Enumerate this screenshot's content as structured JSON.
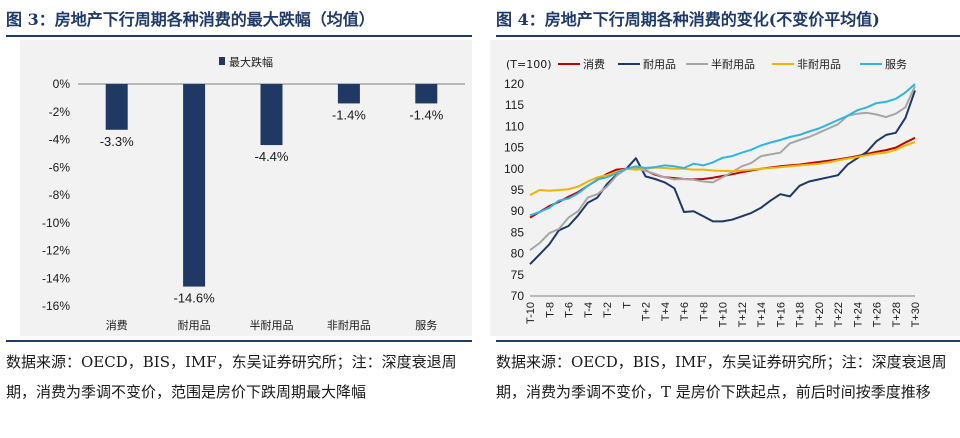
{
  "left": {
    "title": "图 3：房地产下行周期各种消费的最大跌幅（均值）",
    "note": "数据来源：OECD，BIS，IMF，东吴证券研究所；注：深度衰退周期，消费为季调不变价，范围是房价下跌周期最大降幅",
    "bar_color": "#1f3864"
  },
  "right": {
    "title": "图 4：房地产下行周期各种消费的变化(不变价平均值)",
    "note": "数据来源：OECD，BIS，IMF，东吴证券研究所；注：深度衰退周期，消费为季调不变价，T 是房价下跌起点，前后时间按季度推移",
    "unit_label": "(T=100)"
  },
  "chart_data": [
    {
      "type": "bar",
      "legend": [
        "最大跌幅"
      ],
      "categories": [
        "消费",
        "耐用品",
        "半耐用品",
        "非耐用品",
        "服务"
      ],
      "values": [
        -3.3,
        -14.6,
        -4.4,
        -1.4,
        -1.4
      ],
      "value_labels": [
        "-3.3%",
        "-14.6%",
        "-4.4%",
        "-1.4%",
        "-1.4%"
      ],
      "ylim": [
        -16,
        0
      ],
      "yticks": [
        "0%",
        "-2%",
        "-4%",
        "-6%",
        "-8%",
        "-10%",
        "-12%",
        "-14%",
        "-16%"
      ],
      "grid": false
    },
    {
      "type": "line",
      "ylim": [
        70,
        120
      ],
      "yticks": [
        "70",
        "75",
        "80",
        "85",
        "90",
        "95",
        "100",
        "105",
        "110",
        "115",
        "120"
      ],
      "x_labels": [
        "T-10",
        "T-8",
        "T-6",
        "T-4",
        "T-2",
        "T",
        "T+2",
        "T+4",
        "T+6",
        "T+8",
        "T+10",
        "T+12",
        "T+14",
        "T+16",
        "T+18",
        "T+20",
        "T+22",
        "T+24",
        "T+26",
        "T+28",
        "T+30"
      ],
      "legend_position": "top",
      "series": [
        {
          "name": "消费",
          "color": "#c00000",
          "values": [
            88.5,
            89.8,
            91.2,
            92.2,
            93.4,
            94.5,
            96.0,
            97.4,
            98.8,
            99.8,
            100.0,
            100.3,
            99.6,
            98.6,
            98.0,
            97.8,
            97.6,
            97.5,
            97.6,
            97.9,
            98.3,
            98.7,
            99.2,
            99.6,
            100.0,
            100.3,
            100.6,
            100.8,
            101.0,
            101.3,
            101.6,
            101.9,
            102.2,
            102.6,
            103.0,
            103.5,
            104.0,
            104.4,
            105.0,
            106.2,
            107.3
          ]
        },
        {
          "name": "耐用品",
          "color": "#1f3864",
          "values": [
            77.5,
            79.8,
            82.2,
            85.5,
            86.5,
            89.0,
            92.0,
            93.2,
            96.4,
            98.6,
            100.0,
            102.5,
            98.2,
            97.6,
            96.8,
            95.4,
            89.8,
            90.0,
            88.8,
            87.6,
            87.6,
            88.0,
            88.8,
            89.6,
            90.8,
            92.5,
            94.0,
            93.5,
            96.0,
            97.0,
            97.5,
            98.0,
            98.5,
            101.0,
            102.5,
            104.0,
            106.5,
            108.0,
            108.5,
            112.0,
            118.5
          ]
        },
        {
          "name": "半耐用品",
          "color": "#a6a6a6",
          "values": [
            80.8,
            82.5,
            84.8,
            85.8,
            88.5,
            90.0,
            93.2,
            94.0,
            95.8,
            98.4,
            100.0,
            100.2,
            99.5,
            98.8,
            98.0,
            97.5,
            97.6,
            97.4,
            97.0,
            96.8,
            98.0,
            99.2,
            100.6,
            101.4,
            103.0,
            103.4,
            103.8,
            106.0,
            106.8,
            107.5,
            108.5,
            109.5,
            110.5,
            112.5,
            113.0,
            113.2,
            112.8,
            112.2,
            113.0,
            114.5,
            119.5
          ]
        },
        {
          "name": "非耐用品",
          "color": "#f0b400",
          "values": [
            93.8,
            95.0,
            94.8,
            95.0,
            95.2,
            95.8,
            97.0,
            98.0,
            98.5,
            99.3,
            100.0,
            99.8,
            100.0,
            100.3,
            100.2,
            100.0,
            100.0,
            99.8,
            99.8,
            99.6,
            99.5,
            99.4,
            99.6,
            99.8,
            100.0,
            100.2,
            100.4,
            100.6,
            100.8,
            101.0,
            101.2,
            101.5,
            102.0,
            102.4,
            102.8,
            103.2,
            103.6,
            103.8,
            104.5,
            105.5,
            106.3
          ]
        },
        {
          "name": "服务",
          "color": "#30b4e0",
          "values": [
            89.0,
            89.8,
            90.8,
            92.5,
            93.0,
            94.2,
            96.0,
            97.5,
            98.0,
            99.0,
            100.0,
            100.6,
            100.2,
            100.4,
            100.8,
            100.6,
            100.2,
            101.2,
            100.8,
            101.5,
            102.6,
            103.0,
            103.8,
            104.5,
            105.5,
            106.2,
            106.8,
            107.5,
            108.0,
            108.8,
            109.5,
            110.5,
            111.5,
            112.5,
            113.8,
            114.5,
            115.5,
            115.8,
            116.5,
            118.0,
            120.0
          ]
        }
      ]
    }
  ]
}
